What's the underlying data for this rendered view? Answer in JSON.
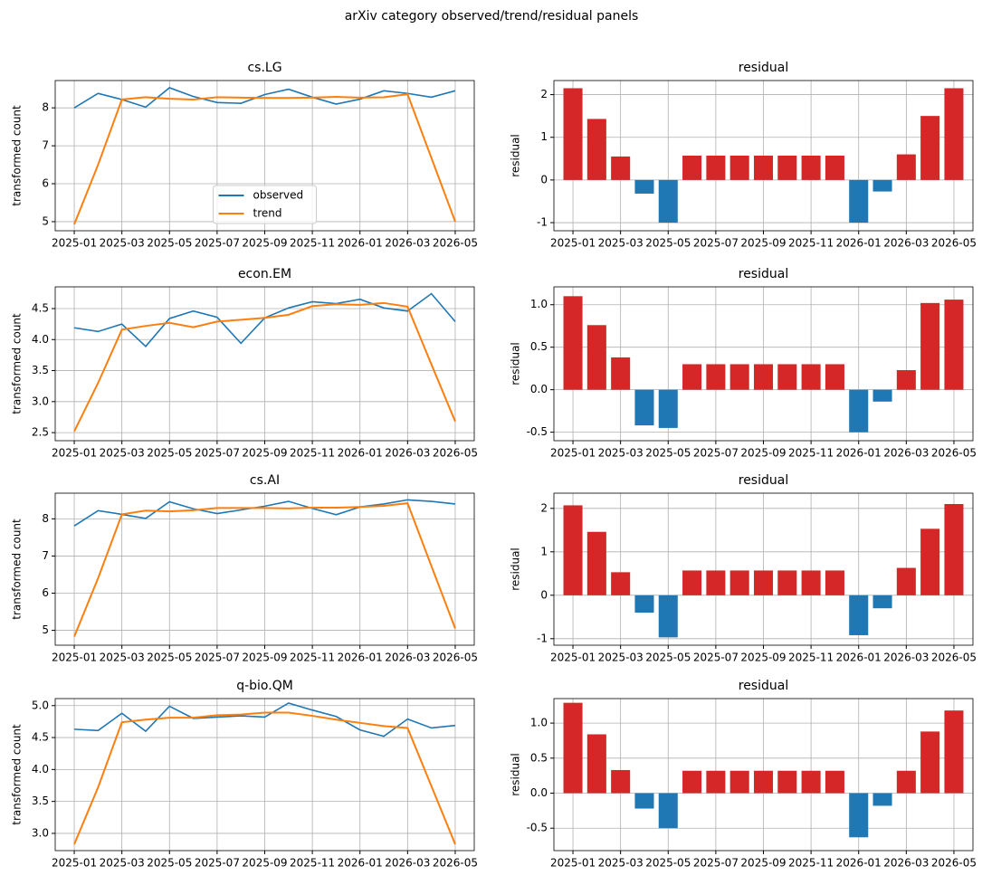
{
  "title": "arXiv category observed/trend/residual panels",
  "chart_data": [
    {
      "type": "line",
      "title": "cs.LG",
      "ylabel": "transformed count",
      "x": [
        "2025-01",
        "2025-02",
        "2025-03",
        "2025-04",
        "2025-05",
        "2025-06",
        "2025-07",
        "2025-08",
        "2025-09",
        "2025-10",
        "2025-11",
        "2025-12",
        "2026-01",
        "2026-02",
        "2026-03",
        "2026-04",
        "2026-05"
      ],
      "xticks": [
        "2025-01",
        "2025-03",
        "2025-05",
        "2025-07",
        "2025-09",
        "2025-11",
        "2026-01",
        "2026-03",
        "2026-05"
      ],
      "ylim": [
        4.76,
        8.72
      ],
      "yticks": [
        5,
        6,
        7,
        8
      ],
      "grid": true,
      "legend": "lower center",
      "series": [
        {
          "name": "observed",
          "color": "#1f77b4",
          "values": [
            8.0,
            8.38,
            8.22,
            8.02,
            8.53,
            8.3,
            8.14,
            8.12,
            8.35,
            8.49,
            8.28,
            8.1,
            8.23,
            8.45,
            8.38,
            8.28,
            8.45
          ]
        },
        {
          "name": "trend",
          "color": "#ff7f0e",
          "values": [
            4.93,
            6.5,
            8.22,
            8.28,
            8.24,
            8.22,
            8.28,
            8.27,
            8.26,
            8.26,
            8.27,
            8.29,
            8.27,
            8.28,
            8.36,
            6.68,
            5.0
          ]
        }
      ]
    },
    {
      "type": "bar",
      "title": "residual",
      "ylabel": "residual",
      "x": [
        "2025-01",
        "2025-02",
        "2025-03",
        "2025-04",
        "2025-05",
        "2025-06",
        "2025-07",
        "2025-08",
        "2025-09",
        "2025-10",
        "2025-11",
        "2025-12",
        "2026-01",
        "2026-02",
        "2026-03",
        "2026-04",
        "2026-05"
      ],
      "xticks": [
        "2025-01",
        "2025-03",
        "2025-05",
        "2025-07",
        "2025-09",
        "2025-11",
        "2026-01",
        "2026-03",
        "2026-05"
      ],
      "ylim": [
        -1.19,
        2.33
      ],
      "yticks": [
        -1,
        0,
        1,
        2
      ],
      "grid": true,
      "color_positive": "#d62728",
      "color_negative": "#1f77b4",
      "values": [
        2.15,
        1.43,
        0.55,
        -0.32,
        -1.0,
        0.57,
        0.57,
        0.57,
        0.57,
        0.57,
        0.57,
        0.57,
        -1.0,
        -0.27,
        0.6,
        1.5,
        2.15
      ]
    },
    {
      "type": "line",
      "title": "econ.EM",
      "ylabel": "transformed count",
      "x": [
        "2025-01",
        "2025-02",
        "2025-03",
        "2025-04",
        "2025-05",
        "2025-06",
        "2025-07",
        "2025-08",
        "2025-09",
        "2025-10",
        "2025-11",
        "2025-12",
        "2026-01",
        "2026-02",
        "2026-03",
        "2026-04",
        "2026-05"
      ],
      "xticks": [
        "2025-01",
        "2025-03",
        "2025-05",
        "2025-07",
        "2025-09",
        "2025-11",
        "2026-01",
        "2026-03",
        "2026-05"
      ],
      "ylim": [
        2.37,
        4.85
      ],
      "yticks": [
        2.5,
        {
          "value": 3,
          "label": "3.0"
        },
        3.5,
        {
          "value": 4,
          "label": "4.0"
        },
        4.5
      ],
      "grid": true,
      "series": [
        {
          "name": "observed",
          "color": "#1f77b4",
          "values": [
            4.19,
            4.13,
            4.25,
            3.89,
            4.34,
            4.46,
            4.36,
            3.94,
            4.35,
            4.51,
            4.61,
            4.58,
            4.65,
            4.51,
            4.46,
            4.74,
            4.29
          ]
        },
        {
          "name": "trend",
          "color": "#ff7f0e",
          "values": [
            2.52,
            3.3,
            4.16,
            4.22,
            4.27,
            4.2,
            4.29,
            4.32,
            4.35,
            4.4,
            4.54,
            4.57,
            4.56,
            4.59,
            4.53,
            3.6,
            2.68
          ]
        }
      ]
    },
    {
      "type": "bar",
      "title": "residual",
      "ylabel": "residual",
      "x": [
        "2025-01",
        "2025-02",
        "2025-03",
        "2025-04",
        "2025-05",
        "2025-06",
        "2025-07",
        "2025-08",
        "2025-09",
        "2025-10",
        "2025-11",
        "2025-12",
        "2026-01",
        "2026-02",
        "2026-03",
        "2026-04",
        "2026-05"
      ],
      "xticks": [
        "2025-01",
        "2025-03",
        "2025-05",
        "2025-07",
        "2025-09",
        "2025-11",
        "2026-01",
        "2026-03",
        "2026-05"
      ],
      "ylim": [
        -0.6,
        1.21
      ],
      "yticks": [
        -0.5,
        {
          "value": 0,
          "label": "0.0"
        },
        0.5,
        {
          "value": 1,
          "label": "1.0"
        }
      ],
      "grid": true,
      "color_positive": "#d62728",
      "color_negative": "#1f77b4",
      "values": [
        1.1,
        0.76,
        0.38,
        -0.42,
        -0.45,
        0.3,
        0.3,
        0.3,
        0.3,
        0.3,
        0.3,
        0.3,
        -0.5,
        -0.14,
        0.23,
        1.02,
        1.06
      ]
    },
    {
      "type": "line",
      "title": "cs.AI",
      "ylabel": "transformed count",
      "x": [
        "2025-01",
        "2025-02",
        "2025-03",
        "2025-04",
        "2025-05",
        "2025-06",
        "2025-07",
        "2025-08",
        "2025-09",
        "2025-10",
        "2025-11",
        "2025-12",
        "2026-01",
        "2026-02",
        "2026-03",
        "2026-04",
        "2026-05"
      ],
      "xticks": [
        "2025-01",
        "2025-03",
        "2025-05",
        "2025-07",
        "2025-09",
        "2025-11",
        "2026-01",
        "2026-03",
        "2026-05"
      ],
      "ylim": [
        4.6,
        8.69
      ],
      "yticks": [
        5,
        6,
        7,
        8
      ],
      "grid": true,
      "series": [
        {
          "name": "observed",
          "color": "#1f77b4",
          "values": [
            7.81,
            8.22,
            8.12,
            8.01,
            8.46,
            8.27,
            8.14,
            8.24,
            8.34,
            8.47,
            8.28,
            8.11,
            8.32,
            8.4,
            8.51,
            8.47,
            8.4
          ]
        },
        {
          "name": "trend",
          "color": "#ff7f0e",
          "values": [
            4.83,
            6.4,
            8.12,
            8.22,
            8.2,
            8.23,
            8.29,
            8.29,
            8.29,
            8.28,
            8.3,
            8.3,
            8.32,
            8.35,
            8.42,
            6.73,
            5.05
          ]
        }
      ]
    },
    {
      "type": "bar",
      "title": "residual",
      "ylabel": "residual",
      "x": [
        "2025-01",
        "2025-02",
        "2025-03",
        "2025-04",
        "2025-05",
        "2025-06",
        "2025-07",
        "2025-08",
        "2025-09",
        "2025-10",
        "2025-11",
        "2025-12",
        "2026-01",
        "2026-02",
        "2026-03",
        "2026-04",
        "2026-05"
      ],
      "xticks": [
        "2025-01",
        "2025-03",
        "2025-05",
        "2025-07",
        "2025-09",
        "2025-11",
        "2026-01",
        "2026-03",
        "2026-05"
      ],
      "ylim": [
        -1.15,
        2.35
      ],
      "yticks": [
        -1,
        0,
        1,
        2
      ],
      "grid": true,
      "color_positive": "#d62728",
      "color_negative": "#1f77b4",
      "values": [
        2.07,
        1.46,
        0.53,
        -0.4,
        -0.97,
        0.57,
        0.57,
        0.57,
        0.57,
        0.57,
        0.57,
        0.57,
        -0.92,
        -0.3,
        0.63,
        1.53,
        2.1
      ]
    },
    {
      "type": "line",
      "title": "q-bio.QM",
      "ylabel": "transformed count",
      "x": [
        "2025-01",
        "2025-02",
        "2025-03",
        "2025-04",
        "2025-05",
        "2025-06",
        "2025-07",
        "2025-08",
        "2025-09",
        "2025-10",
        "2025-11",
        "2025-12",
        "2026-01",
        "2026-02",
        "2026-03",
        "2026-04",
        "2026-05"
      ],
      "xticks": [
        "2025-01",
        "2025-03",
        "2025-05",
        "2025-07",
        "2025-09",
        "2025-11",
        "2026-01",
        "2026-03",
        "2026-05"
      ],
      "ylim": [
        2.73,
        5.11
      ],
      "yticks": [
        {
          "value": 3,
          "label": "3.0"
        },
        3.5,
        {
          "value": 4,
          "label": "4.0"
        },
        4.5,
        {
          "value": 5,
          "label": "5.0"
        }
      ],
      "grid": true,
      "series": [
        {
          "name": "observed",
          "color": "#1f77b4",
          "values": [
            4.63,
            4.61,
            4.88,
            4.6,
            4.99,
            4.8,
            4.82,
            4.84,
            4.82,
            5.04,
            4.93,
            4.83,
            4.62,
            4.52,
            4.79,
            4.65,
            4.69
          ]
        },
        {
          "name": "trend",
          "color": "#ff7f0e",
          "values": [
            2.83,
            3.72,
            4.74,
            4.78,
            4.81,
            4.81,
            4.85,
            4.86,
            4.89,
            4.89,
            4.84,
            4.78,
            4.73,
            4.68,
            4.65,
            3.74,
            2.83
          ]
        }
      ]
    },
    {
      "type": "bar",
      "title": "residual",
      "ylabel": "residual",
      "x": [
        "2025-01",
        "2025-02",
        "2025-03",
        "2025-04",
        "2025-05",
        "2025-06",
        "2025-07",
        "2025-08",
        "2025-09",
        "2025-10",
        "2025-11",
        "2025-12",
        "2026-01",
        "2026-02",
        "2026-03",
        "2026-04",
        "2026-05"
      ],
      "xticks": [
        "2025-01",
        "2025-03",
        "2025-05",
        "2025-07",
        "2025-09",
        "2025-11",
        "2026-01",
        "2026-03",
        "2026-05"
      ],
      "ylim": [
        -0.82,
        1.35
      ],
      "yticks": [
        -0.5,
        {
          "value": 0,
          "label": "0.0"
        },
        0.5,
        {
          "value": 1,
          "label": "1.0"
        }
      ],
      "grid": true,
      "color_positive": "#d62728",
      "color_negative": "#1f77b4",
      "values": [
        1.29,
        0.84,
        0.33,
        -0.22,
        -0.5,
        0.32,
        0.32,
        0.32,
        0.32,
        0.32,
        0.32,
        0.32,
        -0.63,
        -0.18,
        0.32,
        0.88,
        1.18
      ]
    }
  ]
}
